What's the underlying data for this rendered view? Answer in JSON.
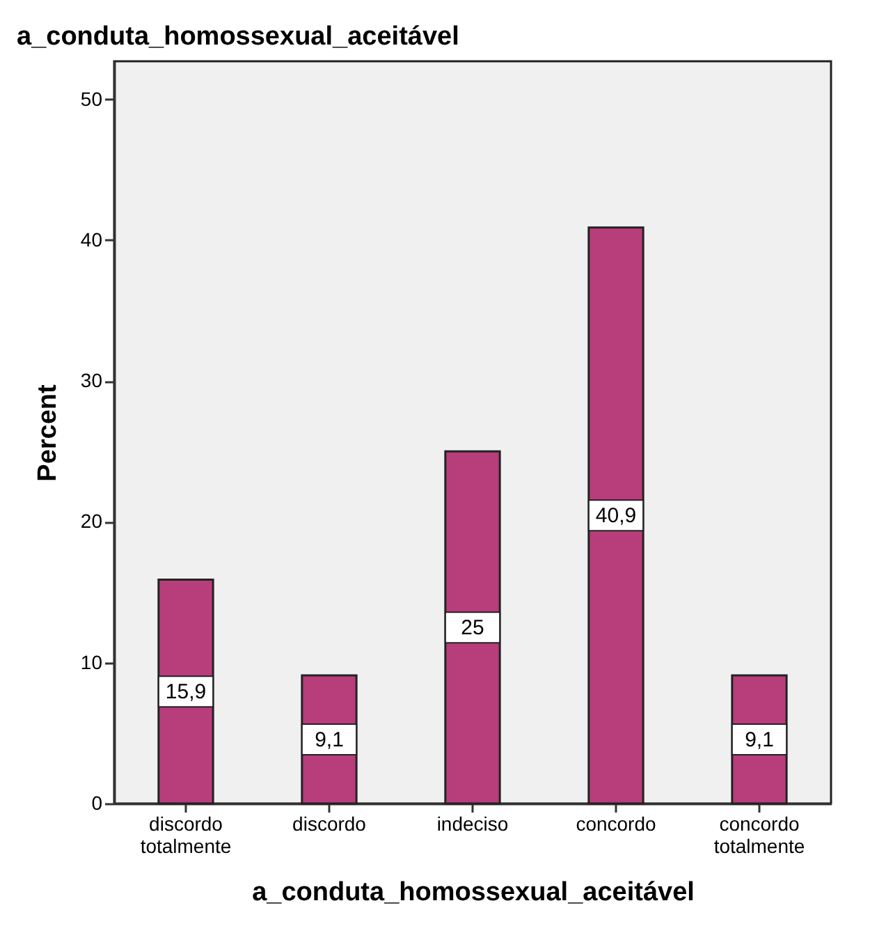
{
  "chart_data": {
    "type": "bar",
    "title": "a_conduta_homossexual_aceitável",
    "xlabel": "a_conduta_homossexual_aceitável",
    "ylabel": "Percent",
    "categories": [
      "discordo totalmente",
      "discordo",
      "indeciso",
      "concordo",
      "concordo totalmente"
    ],
    "values": [
      15.9,
      9.1,
      25,
      40.9,
      9.1
    ],
    "value_labels": [
      "15,9",
      "9,1",
      "25",
      "40,9",
      "9,1"
    ],
    "color": "#b83d7b",
    "ylim": [
      0,
      52.7
    ],
    "yticks": [
      0,
      10,
      20,
      30,
      40,
      50
    ],
    "grid": false
  }
}
